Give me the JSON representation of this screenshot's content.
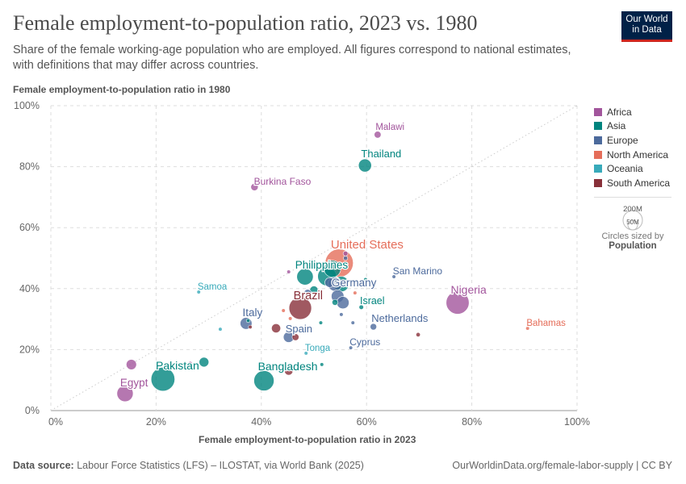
{
  "header": {
    "title": "Female employment-to-population ratio, 2023 vs. 1980",
    "subtitle": "Share of the female working-age population who are employed. All figures correspond to national estimates, with definitions that may differ across countries.",
    "logo_line1": "Our World",
    "logo_line2": "in Data"
  },
  "footer": {
    "source_label": "Data source:",
    "source": "Labour Force Statistics (LFS) – ILOSTAT, via World Bank (2025)",
    "link": "OurWorldinData.org/female-labor-supply | CC BY"
  },
  "size_legend": {
    "big": "200M",
    "small": "50M",
    "caption": "Circles sized by",
    "metric": "Population"
  },
  "chart_data": {
    "type": "scatter",
    "title": "Female employment-to-population ratio, 2023 vs. 1980",
    "xlabel": "Female employment-to-population ratio in 2023",
    "ylabel": "Female employment-to-population ratio in 1980",
    "xlim": [
      0,
      100
    ],
    "ylim": [
      0,
      100
    ],
    "xticks": [
      "0%",
      "20%",
      "40%",
      "60%",
      "80%",
      "100%"
    ],
    "yticks": [
      "0%",
      "20%",
      "40%",
      "60%",
      "80%",
      "100%"
    ],
    "grid": true,
    "legend_placement": "right",
    "regions": [
      {
        "name": "Africa",
        "color": "#a2559c"
      },
      {
        "name": "Asia",
        "color": "#00847e"
      },
      {
        "name": "Europe",
        "color": "#4c6a9c"
      },
      {
        "name": "North America",
        "color": "#e56e5a"
      },
      {
        "name": "Oceania",
        "color": "#38aaba"
      },
      {
        "name": "South America",
        "color": "#883039"
      }
    ],
    "points": [
      {
        "label": "Malawi",
        "region": "Africa",
        "x": 62.1,
        "y": 90.5,
        "pop": 20
      },
      {
        "label": "Thailand",
        "region": "Asia",
        "x": 59.7,
        "y": 80.4,
        "pop": 72
      },
      {
        "label": "Burkina Faso",
        "region": "Africa",
        "x": 38.7,
        "y": 73.3,
        "pop": 23
      },
      {
        "label": "United States",
        "region": "North America",
        "x": 54.8,
        "y": 48.4,
        "pop": 335
      },
      {
        "label": "Philippines",
        "region": "Asia",
        "x": 48.3,
        "y": 43.9,
        "pop": 115
      },
      {
        "label": "San Marino",
        "region": "Europe",
        "x": 65.2,
        "y": 43.9,
        "pop": 0.03
      },
      {
        "label": "Germany",
        "region": "Europe",
        "x": 54.0,
        "y": 41.5,
        "pop": 84
      },
      {
        "label": "Samoa",
        "region": "Oceania",
        "x": 28.1,
        "y": 38.9,
        "pop": 0.2
      },
      {
        "label": "Nigeria",
        "region": "Africa",
        "x": 77.3,
        "y": 35.4,
        "pop": 224
      },
      {
        "label": "Brazil",
        "region": "South America",
        "x": 47.4,
        "y": 33.6,
        "pop": 216
      },
      {
        "label": "Israel",
        "region": "Asia",
        "x": 59.0,
        "y": 33.9,
        "pop": 9
      },
      {
        "label": "Italy",
        "region": "Europe",
        "x": 37.1,
        "y": 28.6,
        "pop": 59
      },
      {
        "label": "Netherlands",
        "region": "Europe",
        "x": 61.3,
        "y": 27.5,
        "pop": 18
      },
      {
        "label": "Bahamas",
        "region": "North America",
        "x": 90.6,
        "y": 27.0,
        "pop": 0.4
      },
      {
        "label": "Spain",
        "region": "Europe",
        "x": 45.2,
        "y": 24.1,
        "pop": 48
      },
      {
        "label": "Cyprus",
        "region": "Europe",
        "x": 57.0,
        "y": 20.6,
        "pop": 1.3
      },
      {
        "label": "Tonga",
        "region": "Oceania",
        "x": 48.5,
        "y": 18.8,
        "pop": 0.1
      },
      {
        "label": "Pakistan",
        "region": "Asia",
        "x": 21.3,
        "y": 10.3,
        "pop": 240
      },
      {
        "label": "Bangladesh",
        "region": "Asia",
        "x": 40.5,
        "y": 9.8,
        "pop": 173
      },
      {
        "label": "Egypt",
        "region": "Africa",
        "x": 14.1,
        "y": 5.6,
        "pop": 112
      },
      {
        "label": "",
        "region": "Africa",
        "x": 15.3,
        "y": 15.1,
        "pop": 45
      },
      {
        "label": "",
        "region": "Asia",
        "x": 29.1,
        "y": 15.9,
        "pop": 40
      },
      {
        "label": "",
        "region": "Oceania",
        "x": 32.2,
        "y": 26.7,
        "pop": 1
      },
      {
        "label": "",
        "region": "South America",
        "x": 42.8,
        "y": 27.0,
        "pop": 35
      },
      {
        "label": "",
        "region": "South America",
        "x": 46.5,
        "y": 24.1,
        "pop": 20
      },
      {
        "label": "",
        "region": "Africa",
        "x": 45.2,
        "y": 45.5,
        "pop": 2
      },
      {
        "label": "",
        "region": "North America",
        "x": 44.2,
        "y": 32.8,
        "pop": 3
      },
      {
        "label": "",
        "region": "North America",
        "x": 45.5,
        "y": 30.2,
        "pop": 2
      },
      {
        "label": "",
        "region": "South America",
        "x": 69.8,
        "y": 24.9,
        "pop": 8
      },
      {
        "label": "",
        "region": "Europe",
        "x": 57.4,
        "y": 28.8,
        "pop": 3
      },
      {
        "label": "",
        "region": "South America",
        "x": 45.2,
        "y": 13.0,
        "pop": 30
      },
      {
        "label": "",
        "region": "Asia",
        "x": 51.5,
        "y": 15.1,
        "pop": 3
      },
      {
        "label": "",
        "region": "Asia",
        "x": 59.8,
        "y": 43.0,
        "pop": 2
      },
      {
        "label": "",
        "region": "North America",
        "x": 57.8,
        "y": 38.6,
        "pop": 5
      },
      {
        "label": "",
        "region": "Europe",
        "x": 55.5,
        "y": 35.4,
        "pop": 65
      },
      {
        "label": "",
        "region": "Europe",
        "x": 54.5,
        "y": 37.5,
        "pop": 68
      },
      {
        "label": "",
        "region": "Asia",
        "x": 52.5,
        "y": 44.0,
        "pop": 150
      },
      {
        "label": "",
        "region": "Asia",
        "x": 53.5,
        "y": 46.5,
        "pop": 120
      },
      {
        "label": "",
        "region": "Asia",
        "x": 55.2,
        "y": 41.5,
        "pop": 100
      },
      {
        "label": "",
        "region": "Europe",
        "x": 53.0,
        "y": 42.0,
        "pop": 40
      },
      {
        "label": "",
        "region": "Africa",
        "x": 56.0,
        "y": 51.5,
        "pop": 10
      },
      {
        "label": "",
        "region": "Europe",
        "x": 56.0,
        "y": 50.0,
        "pop": 8
      },
      {
        "label": "",
        "region": "Asia",
        "x": 50.0,
        "y": 39.5,
        "pop": 30
      },
      {
        "label": "",
        "region": "Europe",
        "x": 48.8,
        "y": 38.5,
        "pop": 25
      },
      {
        "label": "",
        "region": "Asia",
        "x": 54.0,
        "y": 35.5,
        "pop": 15
      },
      {
        "label": "",
        "region": "Europe",
        "x": 55.2,
        "y": 31.5,
        "pop": 4
      },
      {
        "label": "",
        "region": "Asia",
        "x": 51.3,
        "y": 28.8,
        "pop": 3
      },
      {
        "label": "",
        "region": "North America",
        "x": 45.8,
        "y": 26.5,
        "pop": 1
      },
      {
        "label": "",
        "region": "Asia",
        "x": 37.5,
        "y": 29.5,
        "pop": 1
      },
      {
        "label": "",
        "region": "Africa",
        "x": 26.5,
        "y": 15.5,
        "pop": 1
      },
      {
        "label": "",
        "region": "South America",
        "x": 37.9,
        "y": 27.4,
        "pop": 3
      }
    ]
  }
}
